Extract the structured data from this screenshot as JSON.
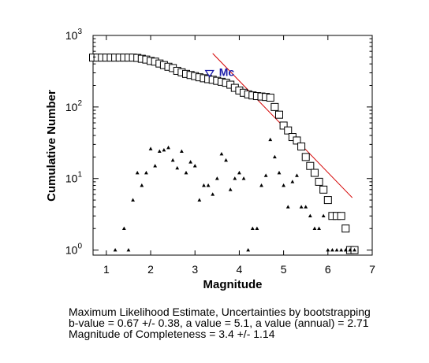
{
  "chart_data": {
    "type": "scatter",
    "xlabel": "Magnitude",
    "ylabel": "Cumulative Number",
    "xlim": [
      0.7,
      7.0
    ],
    "ylim": [
      0.85,
      1000
    ],
    "yscale": "log",
    "xticks": [
      "1",
      "2",
      "3",
      "4",
      "5",
      "6",
      "7"
    ],
    "yticks": [
      {
        "value": 1,
        "base": "10",
        "exp": "0"
      },
      {
        "value": 10,
        "base": "10",
        "exp": "1"
      },
      {
        "value": 100,
        "base": "10",
        "exp": "2"
      },
      {
        "value": 1000,
        "base": "10",
        "exp": "3"
      }
    ],
    "grid": false,
    "series": [
      {
        "marker": "square",
        "color": "#000000",
        "points": [
          [
            0.7,
            490
          ],
          [
            0.8,
            490
          ],
          [
            0.9,
            490
          ],
          [
            1.0,
            490
          ],
          [
            1.1,
            490
          ],
          [
            1.2,
            490
          ],
          [
            1.3,
            490
          ],
          [
            1.4,
            490
          ],
          [
            1.5,
            490
          ],
          [
            1.6,
            490
          ],
          [
            1.7,
            485
          ],
          [
            1.8,
            472
          ],
          [
            1.9,
            460
          ],
          [
            2.0,
            440
          ],
          [
            2.1,
            430
          ],
          [
            2.2,
            405
          ],
          [
            2.3,
            385
          ],
          [
            2.4,
            365
          ],
          [
            2.5,
            350
          ],
          [
            2.6,
            320
          ],
          [
            2.7,
            305
          ],
          [
            2.8,
            290
          ],
          [
            2.9,
            280
          ],
          [
            3.0,
            270
          ],
          [
            3.1,
            260
          ],
          [
            3.2,
            252
          ],
          [
            3.3,
            245
          ],
          [
            3.4,
            240
          ],
          [
            3.5,
            232
          ],
          [
            3.6,
            225
          ],
          [
            3.7,
            218
          ],
          [
            3.8,
            205
          ],
          [
            3.9,
            185
          ],
          [
            4.0,
            170
          ],
          [
            4.1,
            158
          ],
          [
            4.2,
            150
          ],
          [
            4.3,
            145
          ],
          [
            4.4,
            142
          ],
          [
            4.5,
            140
          ],
          [
            4.6,
            138
          ],
          [
            4.7,
            135
          ],
          [
            4.8,
            100
          ],
          [
            4.9,
            78
          ],
          [
            5.0,
            55
          ],
          [
            5.1,
            47
          ],
          [
            5.2,
            38
          ],
          [
            5.3,
            34
          ],
          [
            5.4,
            28
          ],
          [
            5.5,
            20
          ],
          [
            5.6,
            15
          ],
          [
            5.7,
            12
          ],
          [
            5.8,
            9
          ],
          [
            5.9,
            7
          ],
          [
            6.0,
            5
          ],
          [
            6.1,
            3
          ],
          [
            6.2,
            3
          ],
          [
            6.3,
            3
          ],
          [
            6.4,
            2
          ],
          [
            6.5,
            1
          ],
          [
            6.6,
            1
          ]
        ]
      },
      {
        "marker": "triangle",
        "color": "#000000",
        "points": [
          [
            1.2,
            1
          ],
          [
            1.4,
            2
          ],
          [
            1.5,
            1
          ],
          [
            1.6,
            5
          ],
          [
            1.7,
            12
          ],
          [
            1.8,
            8
          ],
          [
            1.9,
            12
          ],
          [
            2.0,
            26
          ],
          [
            2.1,
            15
          ],
          [
            2.2,
            24
          ],
          [
            2.3,
            25
          ],
          [
            2.4,
            27
          ],
          [
            2.5,
            18
          ],
          [
            2.6,
            14
          ],
          [
            2.7,
            24
          ],
          [
            2.8,
            12
          ],
          [
            2.9,
            17
          ],
          [
            3.0,
            15
          ],
          [
            3.1,
            5
          ],
          [
            3.2,
            8
          ],
          [
            3.3,
            8
          ],
          [
            3.4,
            6
          ],
          [
            3.5,
            10
          ],
          [
            3.6,
            22
          ],
          [
            3.7,
            18
          ],
          [
            3.8,
            7
          ],
          [
            3.9,
            10
          ],
          [
            4.0,
            12
          ],
          [
            4.1,
            10
          ],
          [
            4.2,
            1
          ],
          [
            4.3,
            2
          ],
          [
            4.4,
            2
          ],
          [
            4.5,
            8
          ],
          [
            4.6,
            11
          ],
          [
            4.7,
            35
          ],
          [
            4.8,
            20
          ],
          [
            4.9,
            12
          ],
          [
            5.0,
            8
          ],
          [
            5.1,
            4
          ],
          [
            5.2,
            9
          ],
          [
            5.3,
            11
          ],
          [
            5.4,
            4
          ],
          [
            5.5,
            4
          ],
          [
            5.6,
            3
          ],
          [
            5.7,
            2
          ],
          [
            5.8,
            2
          ],
          [
            5.9,
            3
          ],
          [
            6.0,
            1
          ],
          [
            6.1,
            1
          ],
          [
            6.2,
            1
          ],
          [
            6.3,
            1
          ],
          [
            6.4,
            1
          ],
          [
            6.5,
            1
          ],
          [
            6.6,
            1
          ]
        ]
      }
    ],
    "fit_line": {
      "color": "#d40000",
      "points": [
        [
          3.4,
          560
        ],
        [
          6.55,
          5.4
        ]
      ]
    },
    "mc_marker": {
      "label": "Mc",
      "x": 3.4,
      "y": 300,
      "color": "#1b1ba8"
    }
  },
  "caption": {
    "line1": "Maximum Likelihood Estimate, Uncertainties by bootstrapping",
    "line2": "b-value = 0.67 +/- 0.38,  a value = 5.1,  a value (annual) = 2.71",
    "line3": "Magnitude of Completeness = 3.4 +/- 1.14"
  }
}
